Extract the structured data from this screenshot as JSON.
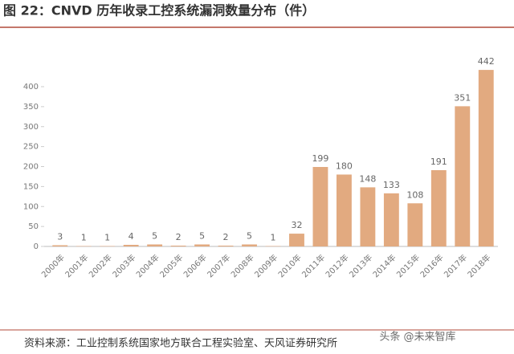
{
  "chart_data": {
    "type": "bar",
    "title": "图 22：CNVD 历年收录工控系统漏洞数量分布（件）",
    "source": "资料来源：工业控制系统国家地方联合工程实验室、天风证券研究所",
    "watermark": "头条 @未来智库",
    "categories": [
      "2000年",
      "2001年",
      "2002年",
      "2003年",
      "2004年",
      "2005年",
      "2006年",
      "2007年",
      "2008年",
      "2009年",
      "2010年",
      "2011年",
      "2012年",
      "2013年",
      "2014年",
      "2015年",
      "2016年",
      "2017年",
      "2018年"
    ],
    "values": [
      3,
      1,
      1,
      4,
      5,
      2,
      5,
      2,
      5,
      1,
      32,
      199,
      180,
      148,
      133,
      108,
      191,
      351,
      442
    ],
    "color": "#e2aa80",
    "ylim": [
      0,
      450
    ],
    "yticks": [
      0,
      50,
      100,
      150,
      200,
      250,
      300,
      350,
      400
    ],
    "grid": false
  }
}
